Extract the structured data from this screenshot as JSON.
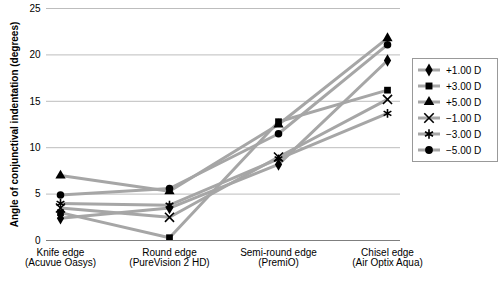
{
  "chart_data": {
    "type": "line",
    "y_label": "Angle of conjunctival indentation (degrees)",
    "categories": [
      "Knife edge (Acuvue Oasys)",
      "Round edge (PureVision 2 HD)",
      "Semi-round edge (PremiO)",
      "Chisel edge (Air Optix Aqua)"
    ],
    "series": [
      {
        "name": "+1.00 D",
        "color": "#a6a6a6",
        "marker": "diamond",
        "values": [
          2.4,
          3.5,
          8.2,
          19.4
        ]
      },
      {
        "name": "+3.00 D",
        "color": "#a6a6a6",
        "marker": "square",
        "values": [
          3.0,
          0.3,
          12.8,
          16.2
        ]
      },
      {
        "name": "+5.00 D",
        "color": "#a6a6a6",
        "marker": "triangle",
        "values": [
          7.0,
          5.3,
          12.5,
          21.8
        ]
      },
      {
        "name": "−1.00 D",
        "color": "#a6a6a6",
        "marker": "times",
        "values": [
          3.5,
          2.5,
          9.0,
          15.2
        ]
      },
      {
        "name": "−3.00 D",
        "color": "#a6a6a6",
        "marker": "asterisk",
        "values": [
          4.0,
          3.8,
          8.8,
          13.7
        ]
      },
      {
        "name": "−5.00 D",
        "color": "#a6a6a6",
        "marker": "circle",
        "values": [
          4.9,
          5.6,
          11.5,
          21.1
        ]
      }
    ],
    "ylim": [
      0,
      25
    ],
    "yticks": [
      0,
      5,
      10,
      15,
      20,
      25
    ],
    "grid": true,
    "legend": "right"
  }
}
